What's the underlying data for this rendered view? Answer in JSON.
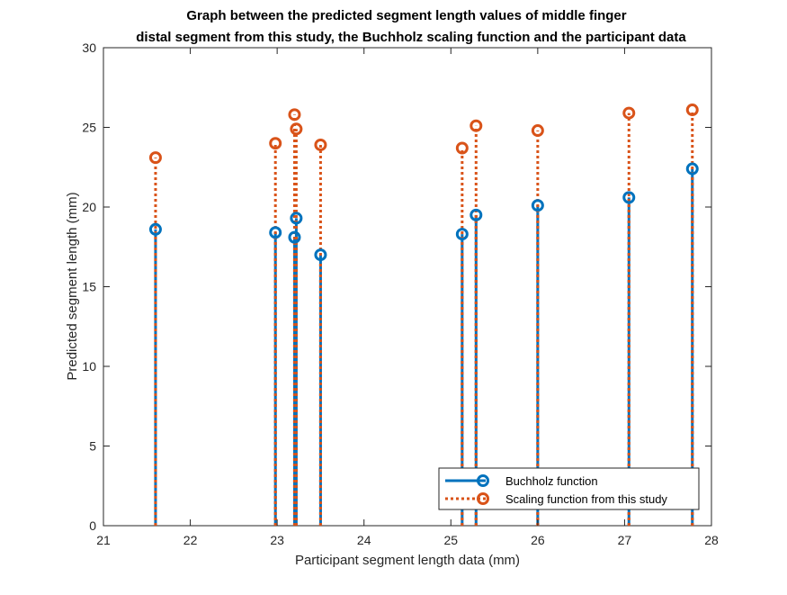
{
  "chart_data": {
    "type": "stem",
    "title_line1": "Graph between the predicted segment length values of middle finger",
    "title_line2": "distal segment from this study, the Buchholz scaling function and the participant data",
    "xlabel": "Participant segment length data (mm)",
    "ylabel": "Predicted segment length (mm)",
    "xlim": [
      21,
      28
    ],
    "ylim": [
      0,
      30
    ],
    "xticks": [
      "21",
      "22",
      "23",
      "24",
      "25",
      "26",
      "27",
      "28"
    ],
    "yticks": [
      "0",
      "5",
      "10",
      "15",
      "20",
      "25",
      "30"
    ],
    "grid": false,
    "legend_position": "bottom-right",
    "x": [
      21.6,
      22.98,
      23.2,
      23.22,
      23.5,
      25.13,
      25.29,
      26.0,
      27.05,
      27.78
    ],
    "series": [
      {
        "name": "Buchholz function",
        "color": "#0072BD",
        "line_style": "solid",
        "values": [
          18.6,
          18.4,
          18.1,
          19.3,
          17.0,
          18.3,
          19.5,
          20.1,
          20.6,
          22.4
        ]
      },
      {
        "name": "Scaling function from this study",
        "color": "#D95319",
        "line_style": "dotted",
        "values": [
          23.1,
          24.0,
          25.8,
          24.9,
          23.9,
          23.7,
          25.1,
          24.8,
          25.9,
          26.1
        ]
      }
    ]
  }
}
